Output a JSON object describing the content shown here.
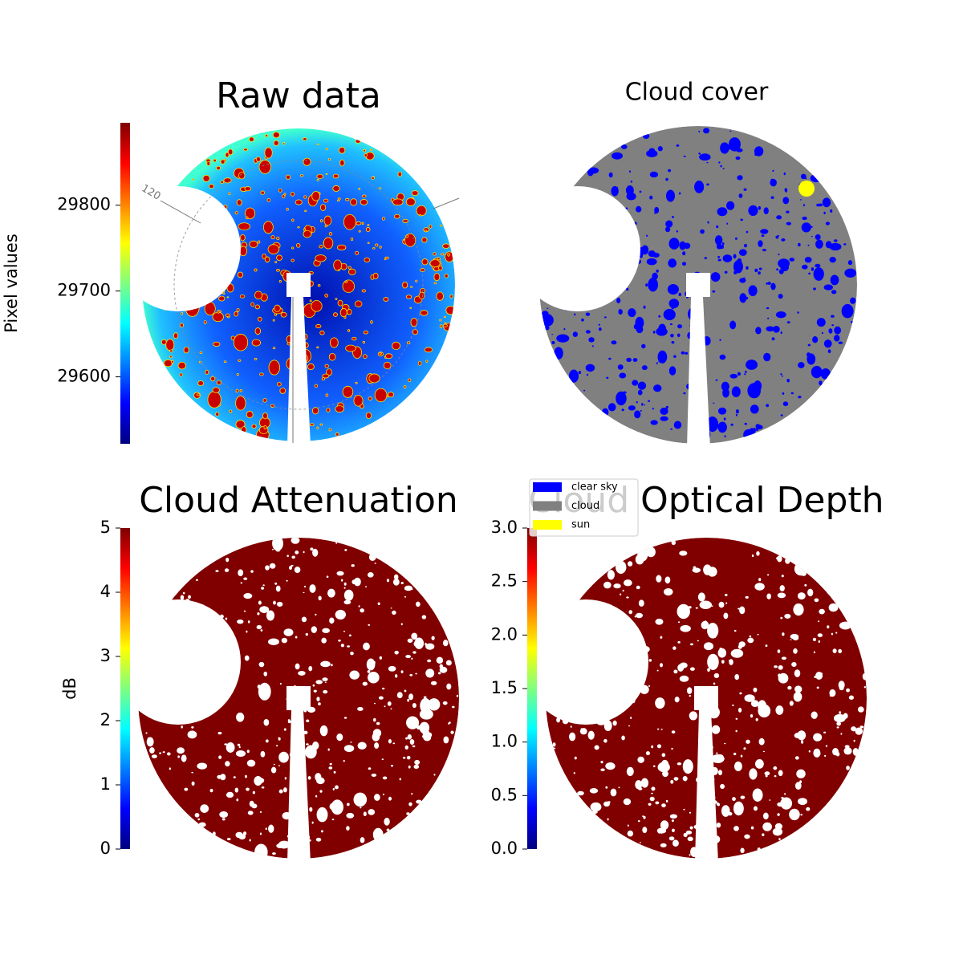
{
  "chart_data": [
    {
      "type": "image",
      "title": "Raw data",
      "colormap": "jet",
      "clim": [
        29522,
        29896
      ],
      "cticks": [
        29600,
        29700,
        29800
      ],
      "clabel": "Pixel values",
      "annotations": [
        "120"
      ]
    },
    {
      "type": "image",
      "title": "Cloud cover",
      "series": [
        {
          "name": "clear sky",
          "color": "#0000ff"
        },
        {
          "name": "cloud",
          "color": "#808080"
        },
        {
          "name": "sun",
          "color": "#ffff00"
        }
      ]
    },
    {
      "type": "image",
      "title": "Cloud Attenuation",
      "colormap": "jet",
      "clim": [
        0,
        5
      ],
      "cticks": [
        0,
        1,
        2,
        3,
        4,
        5
      ],
      "clabel": "dB",
      "color": "#800000"
    },
    {
      "type": "image",
      "title": "Cloud Optical Depth",
      "colormap": "jet",
      "clim": [
        0,
        3
      ],
      "cticks": [
        {
          "value": 0,
          "label": "0.0"
        },
        {
          "value": 0.5,
          "label": "0.5"
        },
        {
          "value": 1,
          "label": "1.0"
        },
        {
          "value": 1.5,
          "label": "1.5"
        },
        {
          "value": 2,
          "label": "2.0"
        },
        {
          "value": 2.5,
          "label": "2.5"
        },
        {
          "value": 3,
          "label": "3.0"
        }
      ],
      "color": "#800000"
    }
  ]
}
